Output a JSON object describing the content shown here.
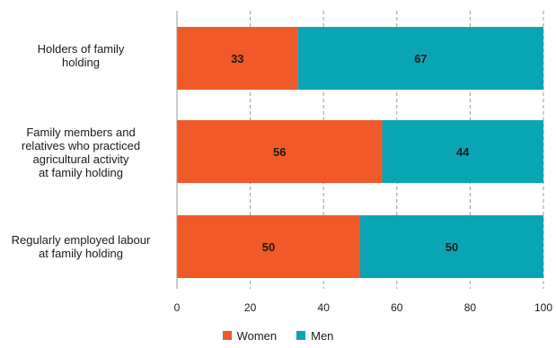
{
  "chart_data": {
    "type": "bar",
    "orientation": "horizontal",
    "stacked": true,
    "categories": [
      "Holders of family\nholding",
      "Family members and\nrelatives  who practiced\nagricultural activity\nat family holding",
      "Regularly employed labour\nat family holding"
    ],
    "series": [
      {
        "name": "Women",
        "color": "#f05a28",
        "values": [
          33,
          56,
          50
        ]
      },
      {
        "name": "Men",
        "color": "#0aa5b5",
        "values": [
          67,
          44,
          50
        ]
      }
    ],
    "xlim": [
      0,
      100
    ],
    "xticks": [
      0,
      20,
      40,
      60,
      80,
      100
    ],
    "grid": "vertical dashed",
    "legend_position": "bottom-center"
  }
}
